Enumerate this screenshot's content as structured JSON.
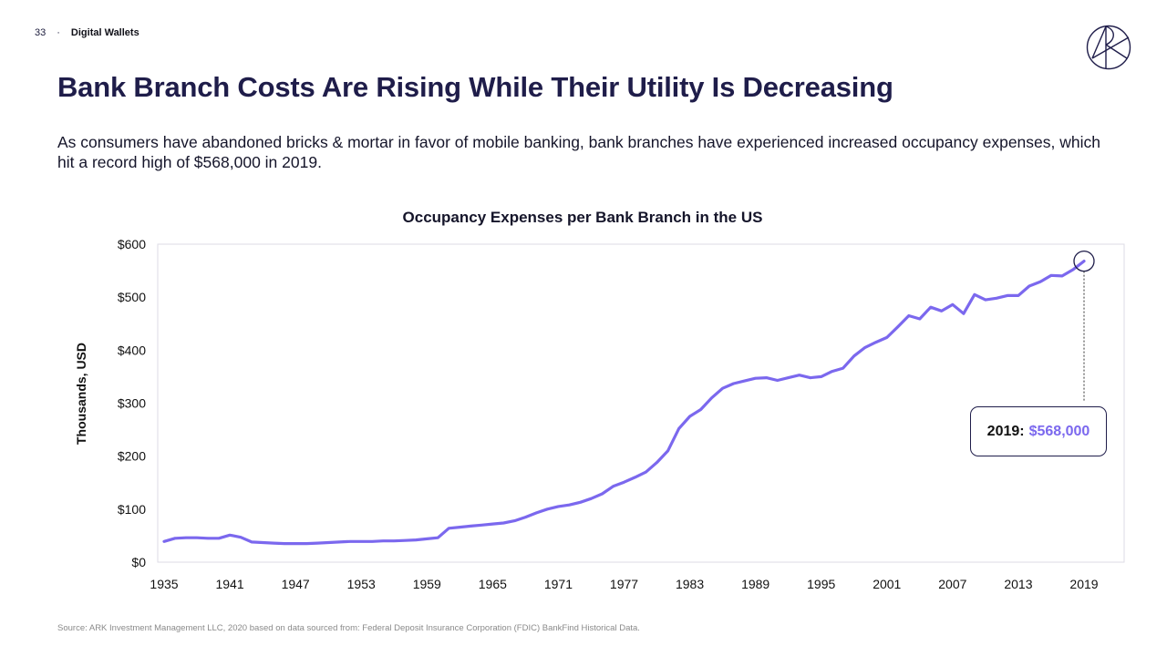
{
  "header": {
    "page_number": "33",
    "separator": "·",
    "section": "Digital Wallets",
    "logo_icon": "ark-logo-icon"
  },
  "title": "Bank Branch Costs Are Rising While Their Utility Is Decreasing",
  "subtitle": "As consumers have abandoned bricks & mortar in favor of mobile banking, bank branches have experienced increased occupancy expenses, which hit a record high of $568,000 in 2019.",
  "source": "Source: ARK Investment Management LLC, 2020 based on data sourced from: Federal Deposit Insurance Corporation (FDIC) BankFind Historical Data.",
  "colors": {
    "line": "#7b68ee",
    "title": "#1f1d4a",
    "highlight": "#7b68ee"
  },
  "chart_data": {
    "type": "line",
    "title": "Occupancy Expenses per Bank Branch in the US",
    "xlabel": "",
    "ylabel": "Thousands, USD",
    "xlim": [
      1935,
      2019
    ],
    "ylim": [
      0,
      600
    ],
    "grid": false,
    "x_ticks": [
      1935,
      1941,
      1947,
      1953,
      1959,
      1965,
      1971,
      1977,
      1983,
      1989,
      1995,
      2001,
      2007,
      2013,
      2019
    ],
    "x_tick_labels": [
      "1935",
      "1941",
      "1947",
      "1953",
      "1959",
      "1965",
      "1971",
      "1977",
      "1983",
      "1989",
      "1995",
      "2001",
      "2007",
      "2013",
      "2019"
    ],
    "y_ticks": [
      0,
      100,
      200,
      300,
      400,
      500,
      600
    ],
    "y_tick_labels": [
      "$0",
      "$100",
      "$200",
      "$300",
      "$400",
      "$500",
      "$600"
    ],
    "series": [
      {
        "name": "Occupancy Expenses per Bank Branch",
        "x": [
          1935,
          1936,
          1937,
          1938,
          1939,
          1940,
          1941,
          1942,
          1943,
          1944,
          1945,
          1946,
          1947,
          1948,
          1949,
          1950,
          1951,
          1952,
          1953,
          1954,
          1955,
          1956,
          1957,
          1958,
          1959,
          1960,
          1961,
          1962,
          1963,
          1964,
          1965,
          1966,
          1967,
          1968,
          1969,
          1970,
          1971,
          1972,
          1973,
          1974,
          1975,
          1976,
          1977,
          1978,
          1979,
          1980,
          1981,
          1982,
          1983,
          1984,
          1985,
          1986,
          1987,
          1988,
          1989,
          1990,
          1991,
          1992,
          1993,
          1994,
          1995,
          1996,
          1997,
          1998,
          1999,
          2000,
          2001,
          2002,
          2003,
          2004,
          2005,
          2006,
          2007,
          2008,
          2009,
          2010,
          2011,
          2012,
          2013,
          2014,
          2015,
          2016,
          2017,
          2018,
          2019
        ],
        "values": [
          39,
          45,
          46,
          46,
          45,
          45,
          51,
          47,
          38,
          37,
          36,
          35,
          35,
          35,
          36,
          37,
          38,
          39,
          39,
          39,
          40,
          40,
          41,
          42,
          44,
          46,
          64,
          66,
          68,
          70,
          72,
          74,
          78,
          85,
          93,
          100,
          105,
          108,
          113,
          120,
          129,
          143,
          151,
          160,
          170,
          188,
          210,
          252,
          275,
          288,
          310,
          328,
          337,
          342,
          347,
          348,
          343,
          348,
          353,
          348,
          350,
          360,
          366,
          389,
          405,
          415,
          424,
          444,
          465,
          459,
          481,
          474,
          486,
          469,
          505,
          495,
          498,
          503,
          503,
          521,
          529,
          541,
          540,
          552,
          568
        ]
      }
    ],
    "annotation": {
      "year_label": "2019:",
      "value_label": "$568,000",
      "x": 2019,
      "y": 568
    }
  }
}
